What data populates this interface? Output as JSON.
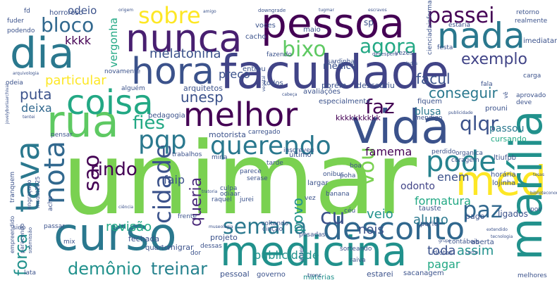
{
  "words": [
    {
      "text": "unimar",
      "color": "#7ad151"
    },
    {
      "text": "faculdade",
      "color": "#414487"
    },
    {
      "text": "pessoa",
      "color": "#440154"
    },
    {
      "text": "curso",
      "color": "#2a788e"
    },
    {
      "text": "medicina",
      "color": "#21918c"
    },
    {
      "text": "vida",
      "color": "#3b528b"
    },
    {
      "text": "dia",
      "color": "#2a788e"
    },
    {
      "text": "nunca",
      "color": "#481f70"
    },
    {
      "text": "hora",
      "color": "#3b528b"
    },
    {
      "text": "nada",
      "color": "#2a788e"
    },
    {
      "text": "rua",
      "color": "#5ec962"
    },
    {
      "text": "coisa",
      "color": "#22a884"
    },
    {
      "text": "melhor",
      "color": "#440154"
    },
    {
      "text": "desconto",
      "color": "#31688e"
    },
    {
      "text": "med",
      "color": "#fde725"
    },
    {
      "text": "marília",
      "color": "#21918c"
    },
    {
      "text": "tava",
      "color": "#2a788e"
    },
    {
      "text": "pode",
      "color": "#26828e"
    },
    {
      "text": "querendo",
      "color": "#2a788e"
    },
    {
      "text": "nota",
      "color": "#31688e"
    },
    {
      "text": "semana",
      "color": "#2a788e"
    },
    {
      "text": "cidade",
      "color": "#3b528b"
    },
    {
      "text": "paz",
      "color": "#31688e"
    },
    {
      "text": "sobre",
      "color": "#fde725"
    },
    {
      "text": "bixo",
      "color": "#5ec962"
    },
    {
      "text": "agora",
      "color": "#22a884"
    },
    {
      "text": "passei",
      "color": "#440154"
    },
    {
      "text": "pqp",
      "color": "#2a788e"
    },
    {
      "text": "fies",
      "color": "#22a884"
    },
    {
      "text": "faz",
      "color": "#440154"
    },
    {
      "text": "qlqr",
      "color": "#3b528b"
    },
    {
      "text": "bloco",
      "color": "#31688e"
    },
    {
      "text": "sao",
      "color": "#440154"
    },
    {
      "text": "rindo",
      "color": "#440154"
    },
    {
      "text": "cu",
      "color": "#3b528b"
    },
    {
      "text": "vou",
      "color": "#7ad151"
    },
    {
      "text": "força",
      "color": "#21918c"
    },
    {
      "text": "demônio",
      "color": "#21918c"
    },
    {
      "text": "treinar",
      "color": "#26828e"
    },
    {
      "text": "puta",
      "color": "#3b528b"
    },
    {
      "text": "particular",
      "color": "#fde725"
    },
    {
      "text": "melatonina",
      "color": "#3b528b"
    },
    {
      "text": "exemplo",
      "color": "#414487"
    },
    {
      "text": "facul",
      "color": "#3b528b"
    },
    {
      "text": "conseguir",
      "color": "#2a788e"
    },
    {
      "text": "unesp",
      "color": "#3b528b"
    },
    {
      "text": "publicidade",
      "color": "#21918c"
    },
    {
      "text": "revisão",
      "color": "#22a884"
    },
    {
      "text": "queria",
      "color": "#482878"
    },
    {
      "text": "povo",
      "color": "#21918c"
    },
    {
      "text": "veio",
      "color": "#21918c"
    },
    {
      "text": "aluno",
      "color": "#2a788e"
    },
    {
      "text": "nois",
      "color": "#3b528b"
    },
    {
      "text": "toda",
      "color": "#3b528b"
    },
    {
      "text": "assim",
      "color": "#21918c"
    },
    {
      "text": "pagar",
      "color": "#22a884"
    },
    {
      "text": "famema",
      "color": "#440154"
    },
    {
      "text": "enem",
      "color": "#3b528b"
    },
    {
      "text": "formatura",
      "color": "#22a884"
    },
    {
      "text": "deixa",
      "color": "#31688e"
    },
    {
      "text": "vergonha",
      "color": "#22a884"
    },
    {
      "text": "odeio",
      "color": "#3b528b"
    },
    {
      "text": "kkkk",
      "color": "#440154"
    },
    {
      "text": "preço",
      "color": "#3b528b"
    },
    {
      "text": "faip",
      "color": "#3b528b"
    },
    {
      "text": "odonto",
      "color": "#414487"
    },
    {
      "text": "blusa",
      "color": "#2a788e"
    },
    {
      "text": "passou",
      "color": "#2a788e"
    },
    {
      "text": "cursando",
      "color": "#22a884"
    },
    {
      "text": "kkkkkkkkkk",
      "color": "#440154"
    },
    {
      "text": "médico",
      "color": "#3b528b"
    },
    {
      "text": "motorista",
      "color": "#3b528b"
    },
    {
      "text": "arquitetos",
      "color": "#3b528b"
    },
    {
      "text": "pedagogia",
      "color": "#3b528b"
    },
    {
      "text": "fechada",
      "color": "#3b528b"
    },
    {
      "text": "migrar",
      "color": "#3b528b"
    },
    {
      "text": "quarto",
      "color": "#3b528b"
    },
    {
      "text": "projeto",
      "color": "#3b528b"
    },
    {
      "text": "pessoal",
      "color": "#3b528b"
    },
    {
      "text": "governo",
      "color": "#3b528b"
    },
    {
      "text": "matérias",
      "color": "#21918c"
    },
    {
      "text": "estarei",
      "color": "#3b528b"
    },
    {
      "text": "sacanagem",
      "color": "#3b528b"
    },
    {
      "text": "melhores",
      "color": "#3b528b"
    },
    {
      "text": "idiotas",
      "color": "#3b528b"
    },
    {
      "text": "contábeis",
      "color": "#3b528b"
    },
    {
      "text": "aberta",
      "color": "#3b528b"
    },
    {
      "text": "ligados",
      "color": "#3b528b"
    },
    {
      "text": "pago",
      "color": "#3b528b"
    },
    {
      "text": "tauste",
      "color": "#3b528b"
    },
    {
      "text": "pariu",
      "color": "#3b528b"
    },
    {
      "text": "lojinha",
      "color": "#3b528b"
    },
    {
      "text": "pov",
      "color": "#3b528b"
    },
    {
      "text": "horária",
      "color": "#3b528b"
    },
    {
      "text": "ltiufpb",
      "color": "#3b528b"
    },
    {
      "text": "coragem",
      "color": "#3b528b"
    },
    {
      "text": "organica",
      "color": "#3b528b"
    },
    {
      "text": "perdido",
      "color": "#3b528b"
    },
    {
      "text": "prouni",
      "color": "#3b528b"
    },
    {
      "text": "fiquem",
      "color": "#3b528b"
    },
    {
      "text": "mendigo",
      "color": "#3b528b"
    },
    {
      "text": "especialmente",
      "color": "#3b528b"
    },
    {
      "text": "avaliações",
      "color": "#3b528b"
    },
    {
      "text": "porém",
      "color": "#3b528b"
    },
    {
      "text": "descobriu",
      "color": "#3b528b"
    },
    {
      "text": "todos",
      "color": "#3b528b"
    },
    {
      "text": "fazendo",
      "color": "#3b528b"
    },
    {
      "text": "entrou",
      "color": "#3b528b"
    },
    {
      "text": "cacho",
      "color": "#3b528b"
    },
    {
      "text": "maio",
      "color": "#3b528b"
    },
    {
      "text": "voces",
      "color": "#3b528b"
    },
    {
      "text": "sp",
      "color": "#3b528b"
    },
    {
      "text": "vezes",
      "color": "#3b528b"
    },
    {
      "text": "estaria",
      "color": "#3b528b"
    },
    {
      "text": "imediatamente",
      "color": "#3b528b"
    },
    {
      "text": "carga",
      "color": "#3b528b"
    },
    {
      "text": "fala",
      "color": "#3b528b"
    },
    {
      "text": "aprovado",
      "color": "#3b528b"
    },
    {
      "text": "deve",
      "color": "#3b528b"
    },
    {
      "text": "sardinha",
      "color": "#3b528b"
    },
    {
      "text": "retorno",
      "color": "#3b528b"
    },
    {
      "text": "realmente",
      "color": "#3b528b"
    },
    {
      "text": "horroroso",
      "color": "#3b528b"
    },
    {
      "text": "fuder",
      "color": "#3b528b"
    },
    {
      "text": "podendo",
      "color": "#3b528b"
    },
    {
      "text": "odeia",
      "color": "#3b528b"
    },
    {
      "text": "alguém",
      "color": "#3b528b"
    },
    {
      "text": "novamente",
      "color": "#3b528b"
    },
    {
      "text": "tarde",
      "color": "#3b528b"
    },
    {
      "text": "último",
      "color": "#3b528b"
    },
    {
      "text": "inscreveu",
      "color": "#3b528b"
    },
    {
      "text": "mina",
      "color": "#3b528b"
    },
    {
      "text": "parece",
      "color": "#3b528b"
    },
    {
      "text": "serase",
      "color": "#3b528b"
    },
    {
      "text": "culpa",
      "color": "#3b528b"
    },
    {
      "text": "odiaar",
      "color": "#3b528b"
    },
    {
      "text": "raquel",
      "color": "#3b528b"
    },
    {
      "text": "jurei",
      "color": "#3b528b"
    },
    {
      "text": "largar",
      "color": "#3b528b"
    },
    {
      "text": "boa",
      "color": "#3b528b"
    },
    {
      "text": "poha",
      "color": "#3b528b"
    },
    {
      "text": "onibus",
      "color": "#3b528b"
    },
    {
      "text": "banana",
      "color": "#3b528b"
    },
    {
      "text": "vez",
      "color": "#3b528b"
    },
    {
      "text": "voltando",
      "color": "#3b528b"
    },
    {
      "text": "cinçao",
      "color": "#3b528b"
    },
    {
      "text": "pesadas",
      "color": "#3b528b"
    },
    {
      "text": "sorteando",
      "color": "#3b528b"
    },
    {
      "text": "raiva",
      "color": "#3b528b"
    },
    {
      "text": "céu",
      "color": "#3b528b"
    },
    {
      "text": "dor",
      "color": "#3b528b"
    },
    {
      "text": "dessas",
      "color": "#3b528b"
    },
    {
      "text": "mix",
      "color": "#3b528b"
    },
    {
      "text": "lata",
      "color": "#3b528b"
    },
    {
      "text": "sido",
      "color": "#3b528b"
    },
    {
      "text": "passar",
      "color": "#3b528b"
    },
    {
      "text": "tranquem",
      "color": "#3b528b"
    },
    {
      "text": "trabalhos",
      "color": "#3b528b"
    },
    {
      "text": "carregado",
      "color": "#3b528b"
    },
    {
      "text": "pensar",
      "color": "#3b528b"
    },
    {
      "text": "acho",
      "color": "#3b528b"
    },
    {
      "text": "fd",
      "color": "#3b528b"
    },
    {
      "text": "downgrade",
      "color": "#3b528b"
    },
    {
      "text": "cienciadainformacao",
      "color": "#3b528b"
    },
    {
      "text": "festa",
      "color": "#3b528b"
    },
    {
      "text": "vê",
      "color": "#3b528b"
    },
    {
      "text": "frente",
      "color": "#3b528b"
    },
    {
      "text": "antes",
      "color": "#3b528b"
    },
    {
      "text": "tmnc",
      "color": "#3b528b"
    },
    {
      "text": "certo",
      "color": "#3b528b"
    },
    {
      "text": "msdat2025",
      "color": "#3b528b"
    },
    {
      "text": "engraçado",
      "color": "#3b528b"
    },
    {
      "text": "empreendido",
      "color": "#3b528b"
    },
    {
      "text": "paracendo",
      "color": "#3b528b"
    },
    {
      "text": "submissão",
      "color": "#3b528b"
    },
    {
      "text": "desespero",
      "color": "#3b528b"
    },
    {
      "text": "arquivologia",
      "color": "#3b528b"
    },
    {
      "text": "tecnologia",
      "color": "#3b528b"
    },
    {
      "text": "museologia",
      "color": "#3b528b"
    },
    {
      "text": "biblioteconomia",
      "color": "#3b528b"
    },
    {
      "text": "publicidade",
      "color": "#3b528b"
    },
    {
      "text": "tugmar",
      "color": "#3b528b"
    },
    {
      "text": "amigo",
      "color": "#3b528b"
    },
    {
      "text": "origem",
      "color": "#3b528b"
    },
    {
      "text": "dados",
      "color": "#3b528b"
    },
    {
      "text": "grupo",
      "color": "#3b528b"
    },
    {
      "text": "vegetal",
      "color": "#3b528b"
    },
    {
      "text": "cabeça",
      "color": "#3b528b"
    },
    {
      "text": "tentei",
      "color": "#3b528b"
    },
    {
      "text": "ciência",
      "color": "#3b528b"
    },
    {
      "text": "escravos",
      "color": "#3b528b"
    },
    {
      "text": "jovelyboriaarchival",
      "color": "#3b528b"
    },
    {
      "text": "extendido",
      "color": "#3b528b"
    },
    {
      "text": "tratoria",
      "color": "#3b528b"
    },
    {
      "text": "tesas",
      "color": "#3b528b"
    },
    {
      "text": "serrado",
      "color": "#3b528b"
    }
  ]
}
